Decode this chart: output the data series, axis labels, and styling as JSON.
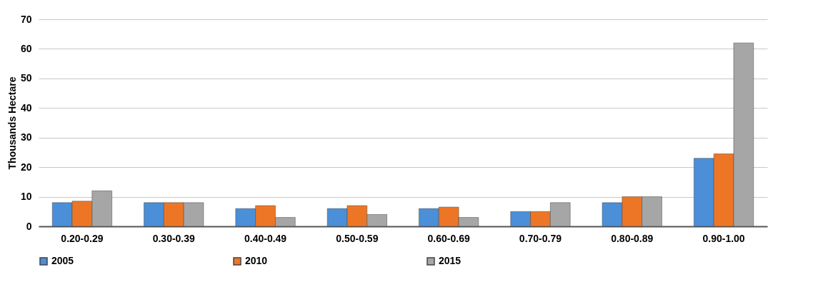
{
  "chart_data": {
    "type": "bar",
    "ylabel": "Thousands Hectare",
    "categories": [
      "0.20-0.29",
      "0.30-0.39",
      "0.40-0.49",
      "0.50-0.59",
      "0.60-0.69",
      "0.70-0.79",
      "0.80-0.89",
      "0.90-1.00"
    ],
    "series": [
      {
        "name": "2005",
        "color": "#4a8fd8",
        "values": [
          8,
          8,
          6,
          6,
          6,
          5,
          8,
          23
        ]
      },
      {
        "name": "2010",
        "color": "#ed7626",
        "values": [
          8.5,
          8,
          7,
          7,
          6.5,
          5,
          10,
          24.5
        ]
      },
      {
        "name": "2015",
        "color": "#a6a6a6",
        "values": [
          12,
          8,
          3,
          4,
          3,
          8,
          10,
          62
        ]
      }
    ],
    "ylim": [
      0,
      70
    ],
    "yticks": [
      0,
      10,
      20,
      30,
      40,
      50,
      60,
      70
    ],
    "grid": "y",
    "legend": "bottom"
  }
}
